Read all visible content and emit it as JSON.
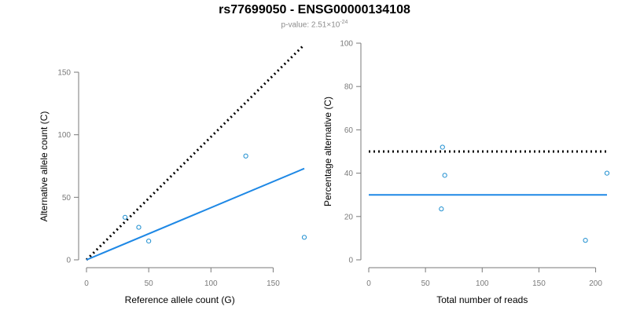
{
  "title": "rs77699050 - ENSG00000134108",
  "subtitle": {
    "prefix": "p-value: 2.51×10",
    "exponent": "-24"
  },
  "colors": {
    "points": "#1f8fd0",
    "fit": "#1e88e5",
    "reference": "#000000",
    "axis": "#7a7a7a"
  },
  "chart_data": [
    {
      "type": "scatter",
      "xlabel": "Reference allele count (G)",
      "ylabel": "Alternative allele count (C)",
      "xlim": [
        0,
        175
      ],
      "ylim": [
        0,
        150
      ],
      "xticks": [
        0,
        50,
        100,
        150
      ],
      "yticks": [
        0,
        50,
        100,
        150
      ],
      "points": [
        {
          "x": 31,
          "y": 34
        },
        {
          "x": 42,
          "y": 26
        },
        {
          "x": 50,
          "y": 15
        },
        {
          "x": 128,
          "y": 83
        },
        {
          "x": 175,
          "y": 18
        }
      ],
      "lines": [
        {
          "style": "dotted",
          "color": "black",
          "from": [
            0,
            0
          ],
          "to": [
            175,
            172
          ]
        },
        {
          "style": "solid",
          "color": "blue",
          "from": [
            0,
            0
          ],
          "to": [
            175,
            73
          ]
        }
      ]
    },
    {
      "type": "scatter",
      "xlabel": "Total number of reads",
      "ylabel": "Percentage alternative (C)",
      "xlim": [
        0,
        210
      ],
      "ylim": [
        0,
        100
      ],
      "xticks": [
        0,
        50,
        100,
        150,
        200
      ],
      "yticks": [
        0,
        20,
        40,
        60,
        80,
        100
      ],
      "points": [
        {
          "x": 65,
          "y": 52
        },
        {
          "x": 67,
          "y": 39
        },
        {
          "x": 64,
          "y": 23.5
        },
        {
          "x": 210,
          "y": 40
        },
        {
          "x": 191,
          "y": 9
        }
      ],
      "lines": [
        {
          "style": "dotted",
          "color": "black",
          "from": [
            0,
            50
          ],
          "to": [
            210,
            50
          ]
        },
        {
          "style": "solid",
          "color": "blue",
          "from": [
            0,
            30
          ],
          "to": [
            210,
            30
          ]
        }
      ]
    }
  ]
}
